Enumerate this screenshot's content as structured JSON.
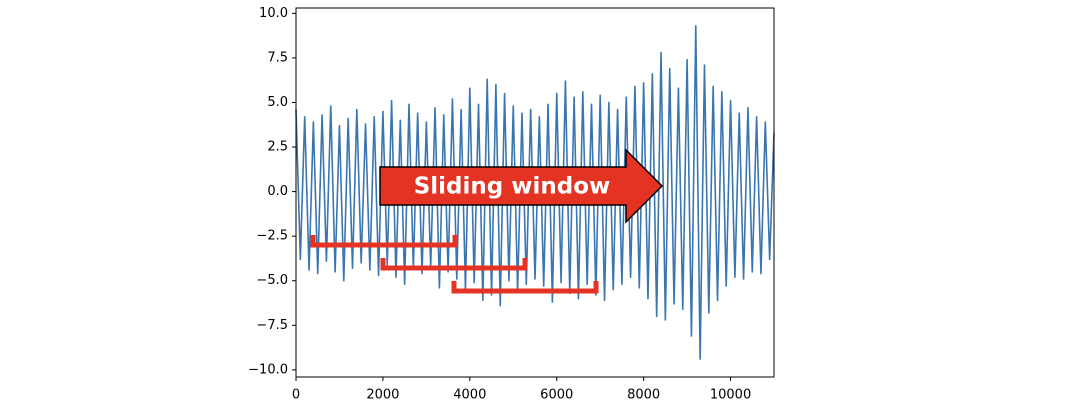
{
  "chart_data": {
    "type": "line",
    "annotation": "Sliding window",
    "x": [
      0,
      100,
      200,
      300,
      400,
      500,
      600,
      700,
      800,
      900,
      1000,
      1100,
      1200,
      1300,
      1400,
      1500,
      1600,
      1700,
      1800,
      1900,
      2000,
      2100,
      2200,
      2300,
      2400,
      2500,
      2600,
      2700,
      2800,
      2900,
      3000,
      3100,
      3200,
      3300,
      3400,
      3500,
      3600,
      3700,
      3800,
      3900,
      4000,
      4100,
      4200,
      4300,
      4400,
      4500,
      4600,
      4700,
      4800,
      4900,
      5000,
      5100,
      5200,
      5300,
      5400,
      5500,
      5600,
      5700,
      5800,
      5900,
      6000,
      6100,
      6200,
      6300,
      6400,
      6500,
      6600,
      6700,
      6800,
      6900,
      7000,
      7100,
      7200,
      7300,
      7400,
      7500,
      7600,
      7700,
      7800,
      7900,
      8000,
      8100,
      8200,
      8300,
      8400,
      8500,
      8600,
      8700,
      8800,
      8900,
      9000,
      9100,
      9200,
      9300,
      9400,
      9500,
      9600,
      9700,
      9800,
      9900,
      10000,
      10100,
      10200,
      10300,
      10400,
      10500,
      10600,
      10700,
      10800,
      10900,
      11000
    ],
    "series": [
      {
        "color": "#3a75af",
        "values": [
          4.6,
          -3.8,
          4.2,
          -4.4,
          3.9,
          -4.6,
          4.3,
          -3.9,
          4.8,
          -4.5,
          3.7,
          -5.0,
          4.1,
          -4.3,
          4.6,
          -4.0,
          3.8,
          -4.4,
          4.2,
          -4.7,
          4.5,
          -4.1,
          5.1,
          -4.8,
          4.0,
          -5.2,
          4.9,
          -4.3,
          4.4,
          -4.6,
          3.9,
          -4.2,
          4.7,
          -5.4,
          4.3,
          -4.5,
          5.2,
          -4.9,
          4.6,
          -5.5,
          5.8,
          -5.1,
          4.9,
          -6.1,
          6.3,
          -5.8,
          6.0,
          -6.4,
          5.5,
          -5.0,
          4.8,
          -5.6,
          4.4,
          -5.2,
          4.6,
          -4.9,
          4.2,
          -5.3,
          4.9,
          -6.2,
          5.5,
          -5.1,
          6.2,
          -5.7,
          5.3,
          -6.0,
          5.6,
          -5.2,
          4.9,
          -5.8,
          5.4,
          -6.1,
          5.0,
          -5.5,
          4.6,
          -5.2,
          5.3,
          -4.8,
          5.9,
          -5.4,
          6.1,
          -6.0,
          6.6,
          -7.0,
          7.8,
          -7.2,
          6.9,
          -6.3,
          5.8,
          -6.6,
          7.4,
          -8.1,
          9.3,
          -9.4,
          7.1,
          -6.8,
          5.9,
          -6.1,
          5.6,
          -5.3,
          5.1,
          -4.8,
          4.4,
          -4.9,
          4.7,
          -4.5,
          4.2,
          -4.6,
          3.9,
          -3.8,
          3.3
        ]
      }
    ],
    "xlim": [
      0,
      11000
    ],
    "xticks": [
      0,
      2000,
      4000,
      6000,
      8000,
      10000
    ],
    "ylim": [
      -10.4,
      10.3
    ],
    "yticks": [
      {
        "value": 10,
        "label": "10.0"
      },
      {
        "value": 7.5,
        "label": "7.5"
      },
      {
        "value": 5,
        "label": "5.0"
      },
      {
        "value": 2.5,
        "label": "2.5"
      },
      {
        "value": 0,
        "label": "0.0"
      },
      {
        "value": -2.5,
        "label": "−2.5"
      },
      {
        "value": -5,
        "label": "−5.0"
      },
      {
        "value": -7.5,
        "label": "−7.5"
      },
      {
        "value": -10,
        "label": "−10.0"
      }
    ]
  }
}
